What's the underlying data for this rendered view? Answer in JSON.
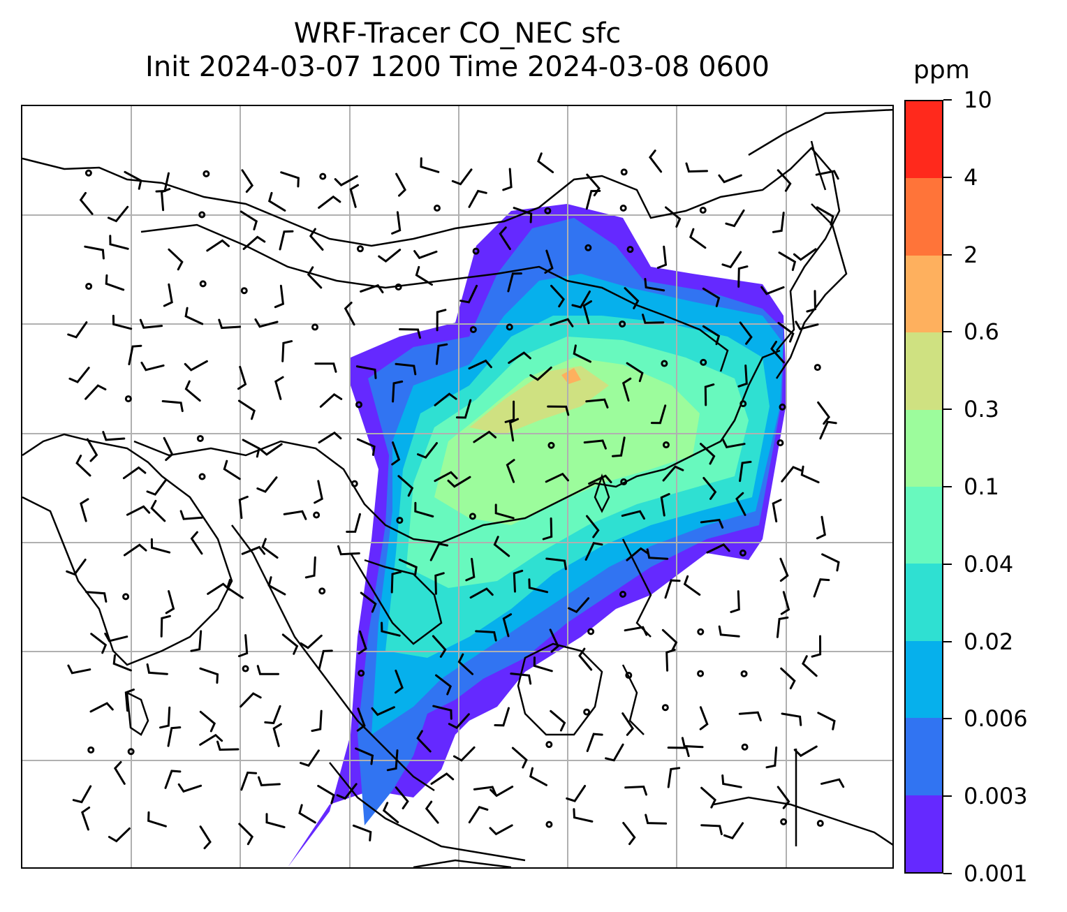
{
  "title": {
    "line1": "WRF-Tracer CO_NEC sfc",
    "line2": "Init 2024-03-07 1200 Time 2024-03-08 0600"
  },
  "colorbar": {
    "unit": "ppm",
    "levels": [
      "0.001",
      "0.003",
      "0.006",
      "0.02",
      "0.04",
      "0.1",
      "0.3",
      "0.6",
      "2",
      "4",
      "10"
    ],
    "colors": [
      "#6529ff",
      "#3174f2",
      "#06b0ec",
      "#2fe0d2",
      "#68f9be",
      "#9cfc9c",
      "#cfe181",
      "#feb05e",
      "#ff7439",
      "#ff291c"
    ]
  },
  "map": {
    "gridlines": true,
    "coastline_color": "#000000",
    "wind_barbs": true
  }
}
